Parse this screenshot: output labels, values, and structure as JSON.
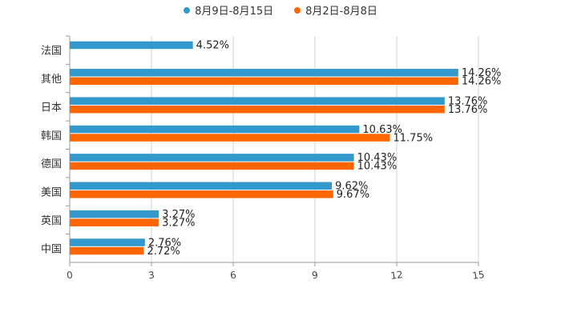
{
  "chart_data": {
    "type": "bar",
    "orientation": "horizontal",
    "title": "",
    "xlabel": "",
    "ylabel": "",
    "xlim": [
      0,
      15
    ],
    "x_ticks": [
      "0",
      "3",
      "6",
      "9",
      "12",
      "15"
    ],
    "grid": true,
    "legend_position": "top-center",
    "categories": [
      "法国",
      "其他",
      "日本",
      "韩国",
      "德国",
      "美国",
      "英国",
      "中国"
    ],
    "series": [
      {
        "name": "8月9日-8月15日",
        "color": "#3399cc",
        "values": [
          4.52,
          14.26,
          13.76,
          10.63,
          10.43,
          9.62,
          3.27,
          2.76
        ],
        "labels": [
          "4.52%",
          "14.26%",
          "13.76%",
          "10.63%",
          "10.43%",
          "9.62%",
          "3.27%",
          "2.76%"
        ]
      },
      {
        "name": "8月2日-8月8日",
        "color": "#ff6600",
        "values": [
          null,
          14.26,
          13.76,
          11.75,
          10.43,
          9.67,
          3.27,
          2.72
        ],
        "labels": [
          "",
          "14.26%",
          "13.76%",
          "11.75%",
          "10.43%",
          "9.67%",
          "3.27%",
          "2.72%"
        ]
      }
    ]
  }
}
